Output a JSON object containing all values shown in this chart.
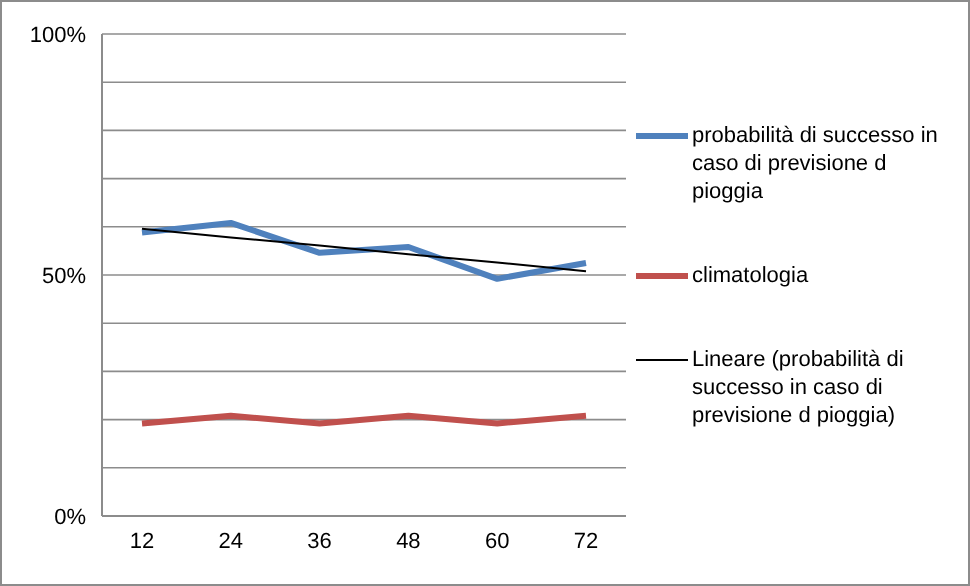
{
  "chart_data": {
    "type": "line",
    "categories": [
      "12",
      "24",
      "36",
      "48",
      "60",
      "72"
    ],
    "series": [
      {
        "name": "probabilità di successo in caso di previsione d pioggia",
        "color": "#4f81bd",
        "values": [
          58.8,
          60.8,
          54.6,
          55.8,
          49.2,
          52.5
        ]
      },
      {
        "name": "climatologia",
        "color": "#c0504d",
        "values": [
          19.2,
          20.8,
          19.2,
          20.8,
          19.2,
          20.8
        ]
      },
      {
        "name": "Lineare (probabilità di successo in caso di previsione d pioggia)",
        "color": "#000000",
        "values": [
          59.6,
          57.8,
          56.1,
          54.3,
          52.6,
          50.8
        ]
      }
    ],
    "ylim": [
      0,
      100
    ],
    "yticks": [
      {
        "value": 0,
        "label": "0%"
      },
      {
        "value": 10,
        "label": null
      },
      {
        "value": 20,
        "label": null
      },
      {
        "value": 30,
        "label": null
      },
      {
        "value": 40,
        "label": null
      },
      {
        "value": 50,
        "label": "50%"
      },
      {
        "value": 60,
        "label": null
      },
      {
        "value": 70,
        "label": null
      },
      {
        "value": 80,
        "label": null
      },
      {
        "value": 90,
        "label": null
      },
      {
        "value": 100,
        "label": "100%"
      }
    ],
    "grid": "y",
    "legend": "right",
    "marker": "none"
  }
}
